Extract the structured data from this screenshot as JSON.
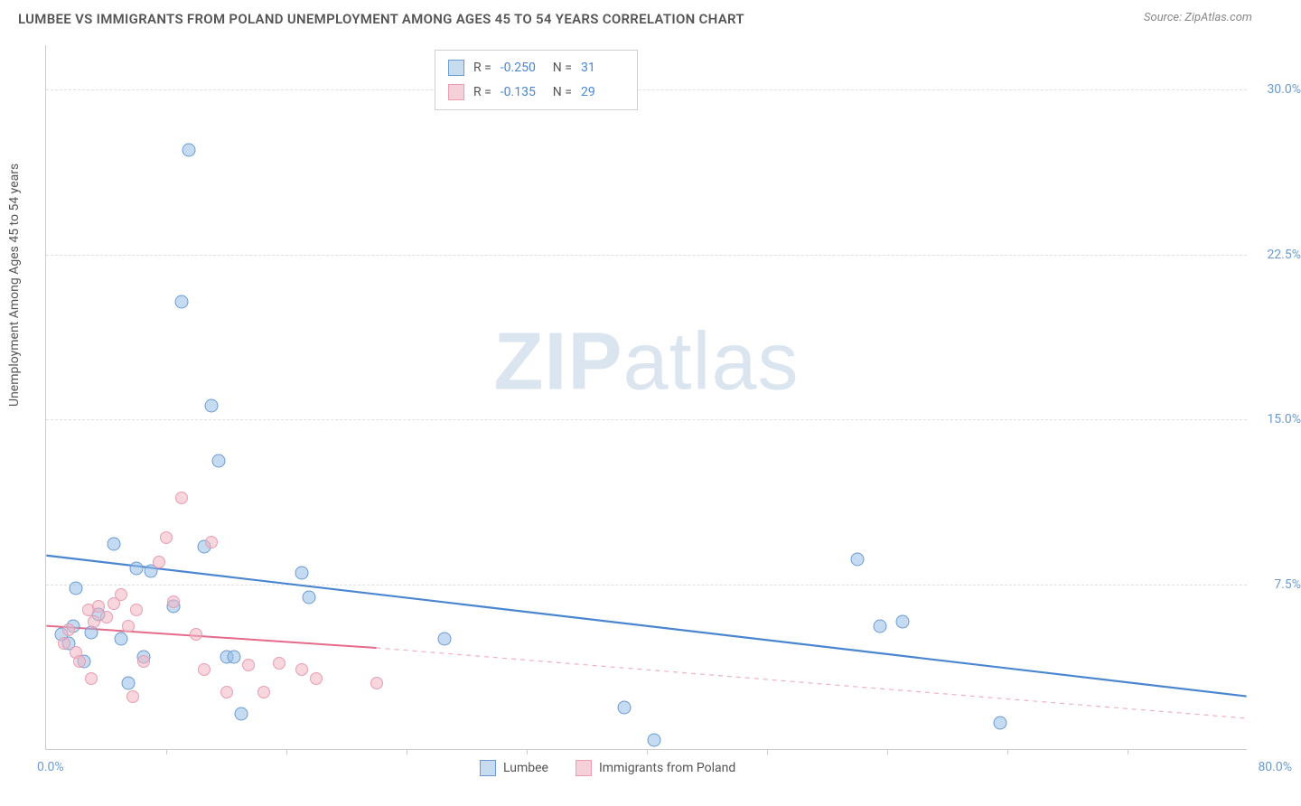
{
  "title": "LUMBEE VS IMMIGRANTS FROM POLAND UNEMPLOYMENT AMONG AGES 45 TO 54 YEARS CORRELATION CHART",
  "source": "Source: ZipAtlas.com",
  "y_axis_label": "Unemployment Among Ages 45 to 54 years",
  "watermark_bold": "ZIP",
  "watermark_light": "atlas",
  "chart": {
    "type": "scatter",
    "xlim": [
      0,
      80
    ],
    "ylim": [
      0,
      32
    ],
    "x_origin_label": "0.0%",
    "x_max_label": "80.0%",
    "y_ticks": [
      7.5,
      15.0,
      22.5,
      30.0
    ],
    "y_tick_labels": [
      "7.5%",
      "15.0%",
      "22.5%",
      "30.0%"
    ],
    "x_ticks": [
      8,
      16,
      24,
      32,
      40,
      48,
      56,
      64,
      72
    ],
    "grid_color": "#e0e0e0",
    "background_color": "#ffffff",
    "axis_color": "#cccccc",
    "tick_label_color": "#6b9bd1"
  },
  "series": [
    {
      "name": "Lumbee",
      "color_fill": "#c8dcf0",
      "color_stroke": "#6b9bd1",
      "marker_size": 15,
      "R": "-0.250",
      "N": "31",
      "trend": {
        "x1": 0,
        "y1": 8.8,
        "x2": 80,
        "y2": 2.4,
        "stroke": "#4a86d0",
        "width": 2.2,
        "dash": "none"
      },
      "points": [
        [
          1.0,
          5.2
        ],
        [
          1.5,
          4.8
        ],
        [
          1.8,
          5.6
        ],
        [
          2.0,
          7.3
        ],
        [
          2.5,
          4.0
        ],
        [
          3.0,
          5.3
        ],
        [
          3.5,
          6.1
        ],
        [
          4.5,
          9.3
        ],
        [
          5.0,
          5.0
        ],
        [
          5.5,
          3.0
        ],
        [
          6.0,
          8.2
        ],
        [
          6.5,
          4.2
        ],
        [
          7.0,
          8.1
        ],
        [
          8.5,
          6.5
        ],
        [
          9.0,
          20.3
        ],
        [
          9.5,
          27.2
        ],
        [
          10.5,
          9.2
        ],
        [
          11.0,
          15.6
        ],
        [
          11.5,
          13.1
        ],
        [
          12.0,
          4.2
        ],
        [
          12.5,
          4.2
        ],
        [
          13.0,
          1.6
        ],
        [
          17.0,
          8.0
        ],
        [
          17.5,
          6.9
        ],
        [
          26.5,
          5.0
        ],
        [
          38.5,
          1.9
        ],
        [
          40.5,
          0.4
        ],
        [
          54.0,
          8.6
        ],
        [
          55.5,
          5.6
        ],
        [
          57.0,
          5.8
        ],
        [
          63.5,
          1.2
        ]
      ]
    },
    {
      "name": "Immigrants from Poland",
      "color_fill": "#f5d0d8",
      "color_stroke": "#e89db0",
      "marker_size": 14,
      "R": "-0.135",
      "N": "29",
      "trend_solid": {
        "x1": 0,
        "y1": 5.6,
        "x2": 22,
        "y2": 4.6,
        "stroke": "#e56b8a",
        "width": 2,
        "dash": "none"
      },
      "trend_dashed": {
        "x1": 22,
        "y1": 4.6,
        "x2": 80,
        "y2": 1.4,
        "stroke": "#f0b0c0",
        "width": 1.2,
        "dash": "5,5"
      },
      "points": [
        [
          1.2,
          4.8
        ],
        [
          1.5,
          5.4
        ],
        [
          2.0,
          4.4
        ],
        [
          2.2,
          4.0
        ],
        [
          2.8,
          6.3
        ],
        [
          3.0,
          3.2
        ],
        [
          3.2,
          5.8
        ],
        [
          3.5,
          6.5
        ],
        [
          4.0,
          6.0
        ],
        [
          4.5,
          6.6
        ],
        [
          5.0,
          7.0
        ],
        [
          5.5,
          5.6
        ],
        [
          5.8,
          2.4
        ],
        [
          6.0,
          6.3
        ],
        [
          6.5,
          4.0
        ],
        [
          7.5,
          8.5
        ],
        [
          8.0,
          9.6
        ],
        [
          8.5,
          6.7
        ],
        [
          9.0,
          11.4
        ],
        [
          10.0,
          5.2
        ],
        [
          10.5,
          3.6
        ],
        [
          11.0,
          9.4
        ],
        [
          12.0,
          2.6
        ],
        [
          13.5,
          3.8
        ],
        [
          14.5,
          2.6
        ],
        [
          15.5,
          3.9
        ],
        [
          17.0,
          3.6
        ],
        [
          18.0,
          3.2
        ],
        [
          22.0,
          3.0
        ]
      ]
    }
  ],
  "legend_top": {
    "R_label": "R  =",
    "N_label": "N  ="
  },
  "legend_bottom": [
    "Lumbee",
    "Immigrants from Poland"
  ]
}
